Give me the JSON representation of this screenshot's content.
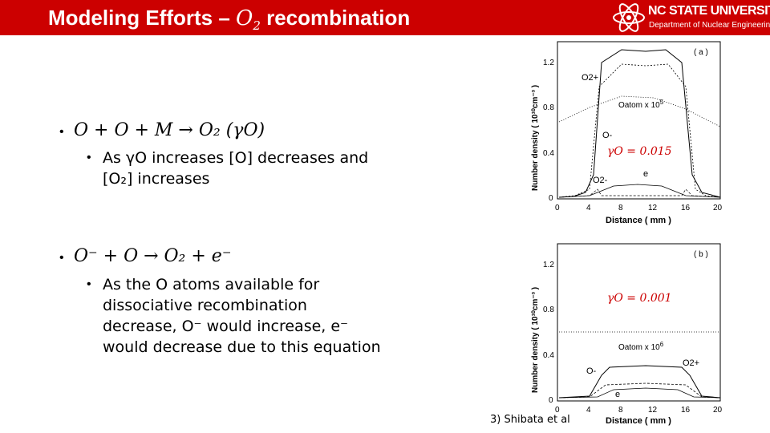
{
  "slide": {
    "title_prefix": "Modeling Efforts – ",
    "title_math_base": "O",
    "title_math_sub": "2",
    "title_suffix": " recombination"
  },
  "logo": {
    "name": "NC STATE UNIVERSITY",
    "dept": "Department of Nuclear Engineering"
  },
  "bullets": [
    {
      "equation": "O + O + M → O₂ (γO)",
      "sub_lines": [
        "As γO increases [O] decreases and",
        "[O₂] increases"
      ]
    },
    {
      "equation": "O⁻ + O → O₂ + e⁻",
      "sub_lines": [
        "As the O atoms available for",
        "dissociative recombination",
        "decrease, O⁻ would increase, e⁻",
        "would decrease due to this equation"
      ]
    }
  ],
  "figure": {
    "caption": "3) Shibata et al",
    "panel_a": {
      "tag": "( a )",
      "gamma_label": "γO = 0.015",
      "atom_label": "Oatom x 10",
      "atom_exp": "5",
      "labels": [
        "O2+",
        "O-",
        "O2-",
        "e"
      ],
      "yticks": [
        "1.2",
        "0.8",
        "0.4",
        "0"
      ],
      "xticks": [
        "0",
        "4",
        "8",
        "12",
        "16",
        "20"
      ],
      "ylabel": "Number density ( 10¹⁰cm⁻³ )",
      "xlabel": "Distance ( mm )"
    },
    "panel_b": {
      "tag": "( b )",
      "gamma_label": "γO = 0.001",
      "atom_label": "Oatom x 10",
      "atom_exp": "6",
      "labels": [
        "O-",
        "O2+",
        "e"
      ],
      "yticks": [
        "1.2",
        "0.8",
        "0.4",
        "0"
      ],
      "xticks": [
        "0",
        "4",
        "8",
        "12",
        "16",
        "20"
      ],
      "ylabel": "Number density ( 10¹⁰cm⁻³ )",
      "xlabel": "Distance ( mm )"
    }
  },
  "colors": {
    "header": "#cc0000",
    "accent_red": "#cc0000"
  }
}
